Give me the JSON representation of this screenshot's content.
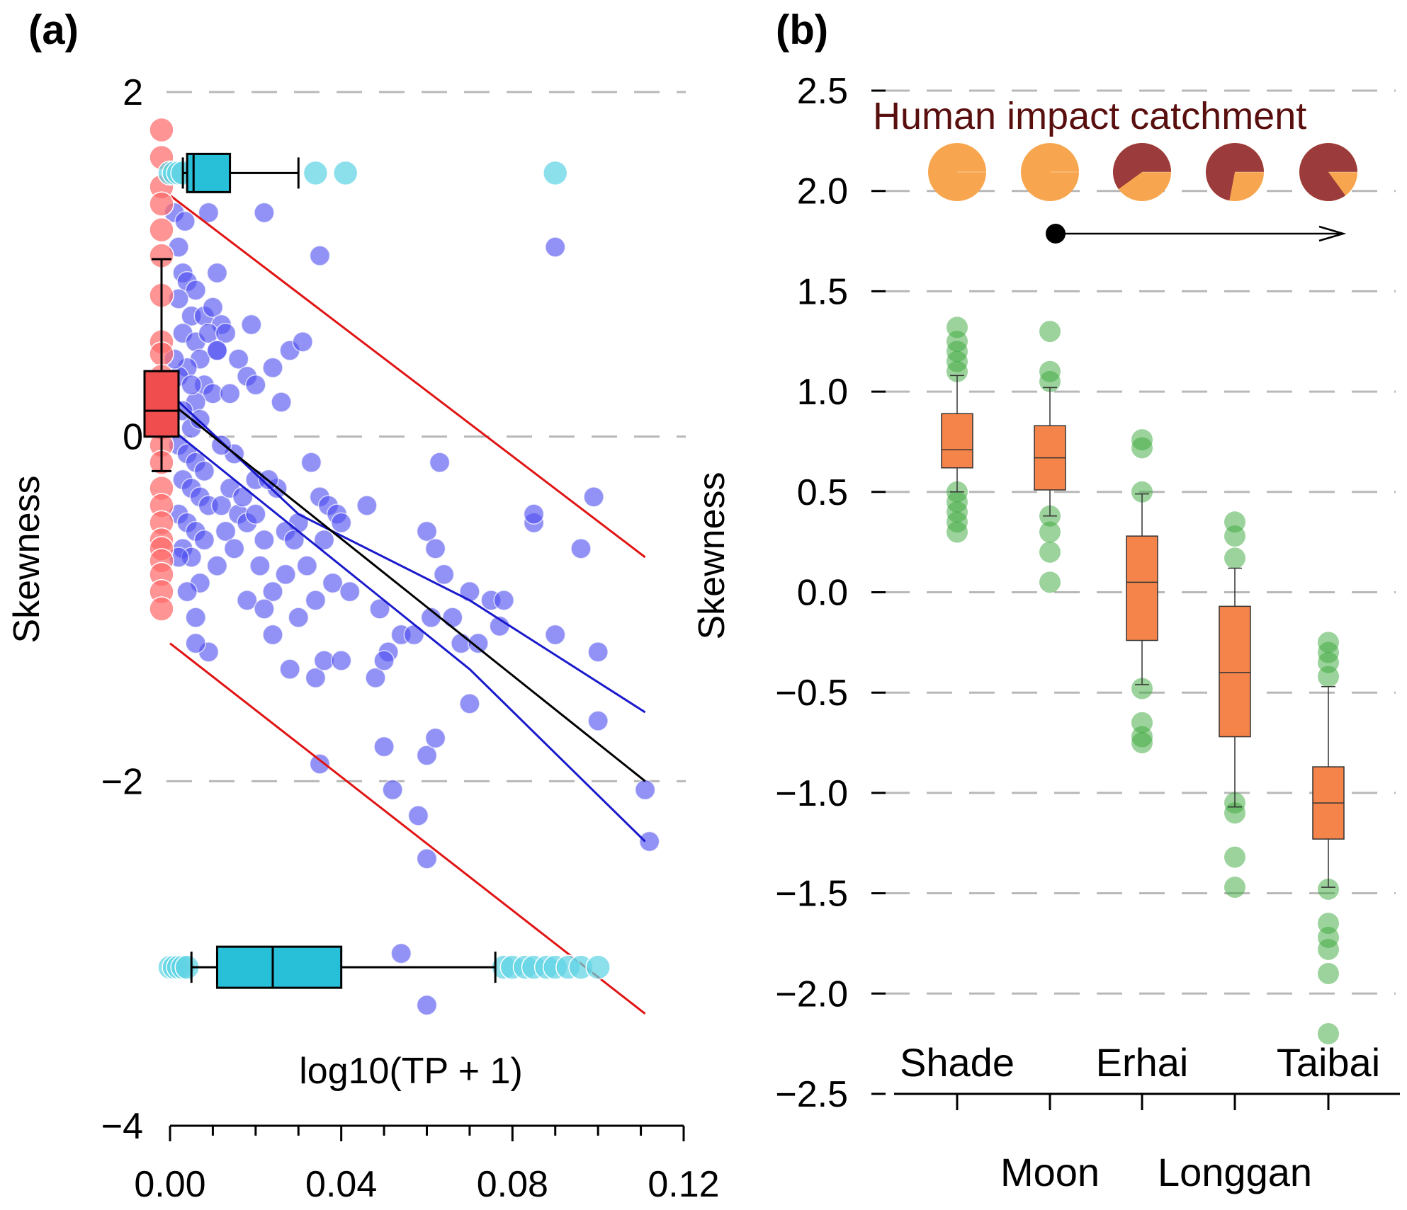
{
  "colors": {
    "grid": "#b8b8b8",
    "scatter_point": "#4f4ff0",
    "red_points": "#ff6b6b",
    "cyan": "#27c0d8",
    "red_box": "#f04e4e",
    "fit_line": "#000000",
    "confidence_band": "#1a1acc",
    "prediction_band": "#e11414",
    "orange_box": "#f5844a",
    "green_point": "#3aa83a",
    "pie_base": "#f7a64f",
    "pie_impact": "#9b3b3b",
    "legend_title": "#5a0f0f"
  },
  "chart_data": [
    {
      "panel_label": "(a)",
      "type": "scatter",
      "xlabel": "log10(TP + 1)",
      "ylabel": "Skewness",
      "xlim": [
        0.0,
        0.12
      ],
      "ylim": [
        -4,
        2
      ],
      "xticks": [
        "0.00",
        "0.04",
        "0.08",
        "0.12"
      ],
      "xtick_values": [
        0.0,
        0.04,
        0.08,
        0.12
      ],
      "yticks": [
        "2",
        "0",
        "−2",
        "−4"
      ],
      "ytick_values": [
        2,
        0,
        -2,
        -4
      ],
      "grid": "horizontal dashed",
      "scatter_points": [
        [
          0.001,
          1.3
        ],
        [
          0.002,
          1.1
        ],
        [
          0.0035,
          1.25
        ],
        [
          0.003,
          0.95
        ],
        [
          0.004,
          0.9
        ],
        [
          0.006,
          0.85
        ],
        [
          0.002,
          0.8
        ],
        [
          0.005,
          0.7
        ],
        [
          0.003,
          0.6
        ],
        [
          0.006,
          0.55
        ],
        [
          0.008,
          0.7
        ],
        [
          0.01,
          0.75
        ],
        [
          0.012,
          0.65
        ],
        [
          0.009,
          0.6
        ],
        [
          0.011,
          0.5
        ],
        [
          0.007,
          0.45
        ],
        [
          0.004,
          0.4
        ],
        [
          0.002,
          0.35
        ],
        [
          0.008,
          0.3
        ],
        [
          0.01,
          0.25
        ],
        [
          0.006,
          0.2
        ],
        [
          0.003,
          0.15
        ],
        [
          0.005,
          0.05
        ],
        [
          0.007,
          0.1
        ],
        [
          0.002,
          -0.05
        ],
        [
          0.004,
          -0.1
        ],
        [
          0.006,
          -0.15
        ],
        [
          0.008,
          -0.2
        ],
        [
          0.003,
          -0.25
        ],
        [
          0.005,
          -0.3
        ],
        [
          0.007,
          -0.35
        ],
        [
          0.009,
          -0.4
        ],
        [
          0.002,
          -0.45
        ],
        [
          0.004,
          -0.5
        ],
        [
          0.006,
          -0.55
        ],
        [
          0.008,
          -0.6
        ],
        [
          0.003,
          -0.65
        ],
        [
          0.005,
          -0.7
        ],
        [
          0.012,
          -0.4
        ],
        [
          0.014,
          -0.3
        ],
        [
          0.016,
          -0.45
        ],
        [
          0.013,
          -0.55
        ],
        [
          0.015,
          -0.65
        ],
        [
          0.018,
          -0.5
        ],
        [
          0.011,
          -0.75
        ],
        [
          0.017,
          -0.35
        ],
        [
          0.02,
          -0.45
        ],
        [
          0.02,
          -0.25
        ],
        [
          0.022,
          -0.6
        ],
        [
          0.015,
          -0.1
        ],
        [
          0.012,
          -0.05
        ],
        [
          0.014,
          0.25
        ],
        [
          0.016,
          0.45
        ],
        [
          0.018,
          0.35
        ],
        [
          0.02,
          0.3
        ],
        [
          0.013,
          0.6
        ],
        [
          0.011,
          0.5
        ],
        [
          0.024,
          0.4
        ],
        [
          0.019,
          0.65
        ],
        [
          0.026,
          0.2
        ],
        [
          0.028,
          0.5
        ],
        [
          0.031,
          0.55
        ],
        [
          0.033,
          -0.15
        ],
        [
          0.035,
          -0.35
        ],
        [
          0.03,
          -0.5
        ],
        [
          0.037,
          -0.4
        ],
        [
          0.027,
          -0.55
        ],
        [
          0.025,
          -0.3
        ],
        [
          0.023,
          -0.25
        ],
        [
          0.029,
          -0.6
        ],
        [
          0.032,
          -0.75
        ],
        [
          0.036,
          -0.6
        ],
        [
          0.039,
          -0.45
        ],
        [
          0.04,
          -0.5
        ],
        [
          0.038,
          -0.85
        ],
        [
          0.034,
          -0.95
        ],
        [
          0.03,
          -1.05
        ],
        [
          0.027,
          -0.8
        ],
        [
          0.024,
          -0.9
        ],
        [
          0.021,
          -0.75
        ],
        [
          0.042,
          -0.9
        ],
        [
          0.046,
          -0.4
        ],
        [
          0.049,
          -1.0
        ],
        [
          0.051,
          -1.25
        ],
        [
          0.054,
          -1.15
        ],
        [
          0.057,
          -1.15
        ],
        [
          0.06,
          -0.55
        ],
        [
          0.062,
          -0.65
        ],
        [
          0.064,
          -0.8
        ],
        [
          0.066,
          -1.05
        ],
        [
          0.068,
          -1.2
        ],
        [
          0.07,
          -1.55
        ],
        [
          0.072,
          -1.2
        ],
        [
          0.075,
          -0.95
        ],
        [
          0.077,
          -1.1
        ],
        [
          0.085,
          -0.5
        ],
        [
          0.09,
          -1.15
        ],
        [
          0.096,
          -0.65
        ],
        [
          0.1,
          -1.25
        ],
        [
          0.099,
          -0.35
        ],
        [
          0.09,
          1.1
        ],
        [
          0.022,
          1.3
        ],
        [
          0.01,
          1.5
        ],
        [
          0.011,
          0.95
        ],
        [
          0.035,
          1.05
        ],
        [
          0.005,
          0.3
        ],
        [
          0.007,
          -0.85
        ],
        [
          0.004,
          -0.9
        ],
        [
          0.006,
          -1.05
        ],
        [
          0.009,
          -1.25
        ],
        [
          0.006,
          -1.2
        ],
        [
          0.018,
          -0.95
        ],
        [
          0.022,
          -1.0
        ],
        [
          0.024,
          -1.15
        ],
        [
          0.028,
          -1.35
        ],
        [
          0.034,
          -1.4
        ],
        [
          0.036,
          -1.3
        ],
        [
          0.04,
          -1.3
        ],
        [
          0.048,
          -1.4
        ],
        [
          0.05,
          -1.8
        ],
        [
          0.06,
          -1.85
        ],
        [
          0.061,
          -1.05
        ],
        [
          0.063,
          -0.15
        ],
        [
          0.07,
          -0.9
        ],
        [
          0.078,
          -0.95
        ],
        [
          0.085,
          -0.45
        ],
        [
          0.1,
          -1.65
        ],
        [
          0.111,
          -2.05
        ],
        [
          0.112,
          -2.35
        ],
        [
          0.05,
          -1.3
        ],
        [
          0.062,
          -1.75
        ],
        [
          0.052,
          -2.05
        ],
        [
          0.058,
          -2.2
        ],
        [
          0.06,
          -2.45
        ],
        [
          0.06,
          -3.3
        ],
        [
          0.054,
          -3.0
        ],
        [
          0.035,
          -1.9
        ],
        [
          0.009,
          1.3
        ],
        [
          0.002,
          -0.7
        ],
        [
          0.001,
          0.45
        ]
      ],
      "y_points_red": [
        1.78,
        1.62,
        1.45,
        1.35,
        1.2,
        1.05,
        0.82,
        0.55,
        0.48,
        0.35,
        0.25,
        0.12,
        0.05,
        -0.05,
        -0.15,
        -0.3,
        -0.4,
        -0.5,
        -0.6,
        -0.65,
        -0.72,
        -0.8,
        -0.9,
        -1.0
      ],
      "y_red_box": {
        "min": -0.2,
        "q1": 0.0,
        "median": 0.15,
        "q3": 0.38,
        "max": 1.03
      },
      "x_cyan_top_points": [
        0.0,
        0.001,
        0.002,
        0.003,
        0.034,
        0.041,
        0.09
      ],
      "x_cyan_top_box": {
        "y": 1.53,
        "min": 0.003,
        "q1": 0.004,
        "median": 0.0055,
        "q3": 0.014,
        "max": 0.03
      },
      "x_cyan_bottom_points": [
        0.0,
        0.001,
        0.002,
        0.003,
        0.004,
        0.078,
        0.08,
        0.083,
        0.085,
        0.088,
        0.09,
        0.093,
        0.096,
        0.1
      ],
      "x_cyan_bottom_box": {
        "y": -3.08,
        "min": 0.005,
        "q1": 0.011,
        "median": 0.024,
        "q3": 0.04,
        "max": 0.076
      },
      "lines": {
        "fit": {
          "x": [
            0.0,
            0.111
          ],
          "y": [
            0.2,
            -2.0
          ]
        },
        "confidence_upper": [
          [
            0.0,
            0.25
          ],
          [
            0.03,
            -0.45
          ],
          [
            0.07,
            -0.95
          ],
          [
            0.111,
            -1.6
          ]
        ],
        "confidence_lower": [
          [
            0.0,
            0.05
          ],
          [
            0.03,
            -0.55
          ],
          [
            0.07,
            -1.35
          ],
          [
            0.111,
            -2.35
          ]
        ],
        "prediction_upper": {
          "x": [
            0.0,
            0.111
          ],
          "y": [
            1.4,
            -0.7
          ]
        },
        "prediction_lower": {
          "x": [
            0.0,
            0.111
          ],
          "y": [
            -1.2,
            -3.35
          ]
        }
      }
    },
    {
      "panel_label": "(b)",
      "type": "box",
      "ylabel": "Skewness",
      "ylim": [
        -2.5,
        2.5
      ],
      "yticks": [
        "2.5",
        "2.0",
        "1.5",
        "1.0",
        "0.5",
        "0.0",
        "−0.5",
        "−1.0",
        "−1.5",
        "−2.0",
        "−2.5"
      ],
      "ytick_values": [
        2.5,
        2.0,
        1.5,
        1.0,
        0.5,
        0.0,
        -0.5,
        -1.0,
        -1.5,
        -2.0,
        -2.5
      ],
      "grid": "horizontal dashed",
      "categories": [
        "Shade",
        "Moon",
        "Erhai",
        "Longgan",
        "Taibai"
      ],
      "category_label_row": [
        "top",
        "bottom",
        "top",
        "bottom",
        "top"
      ],
      "boxes": [
        {
          "min": 0.5,
          "q1": 0.62,
          "median": 0.71,
          "q3": 0.89,
          "max": 1.08
        },
        {
          "min": 0.38,
          "q1": 0.51,
          "median": 0.67,
          "q3": 0.83,
          "max": 1.02
        },
        {
          "min": -0.46,
          "q1": -0.24,
          "median": 0.05,
          "q3": 0.28,
          "max": 0.49
        },
        {
          "min": -1.07,
          "q1": -0.72,
          "median": -0.4,
          "q3": -0.07,
          "max": 0.12
        },
        {
          "min": -1.47,
          "q1": -1.23,
          "median": -1.05,
          "q3": -0.87,
          "max": -0.47
        }
      ],
      "outliers": [
        [
          0.3,
          0.35,
          0.4,
          0.45,
          0.5,
          1.1,
          1.15,
          1.2,
          1.25,
          1.32
        ],
        [
          0.05,
          0.2,
          0.3,
          0.38,
          1.05,
          1.1,
          1.3
        ],
        [
          -0.75,
          -0.72,
          -0.65,
          -0.48,
          0.5,
          0.72,
          0.76
        ],
        [
          -1.47,
          -1.32,
          -1.1,
          -1.05,
          0.17,
          0.28,
          0.35
        ],
        [
          -2.2,
          -1.9,
          -1.78,
          -1.72,
          -1.65,
          -1.48,
          -0.42,
          -0.35,
          -0.3,
          -0.25
        ]
      ],
      "legend_title": "Human impact catchment",
      "impact_fractions": [
        0.0,
        0.0,
        0.6,
        0.72,
        0.85
      ],
      "arrow_span": [
        "Moon",
        "Taibai"
      ]
    }
  ]
}
